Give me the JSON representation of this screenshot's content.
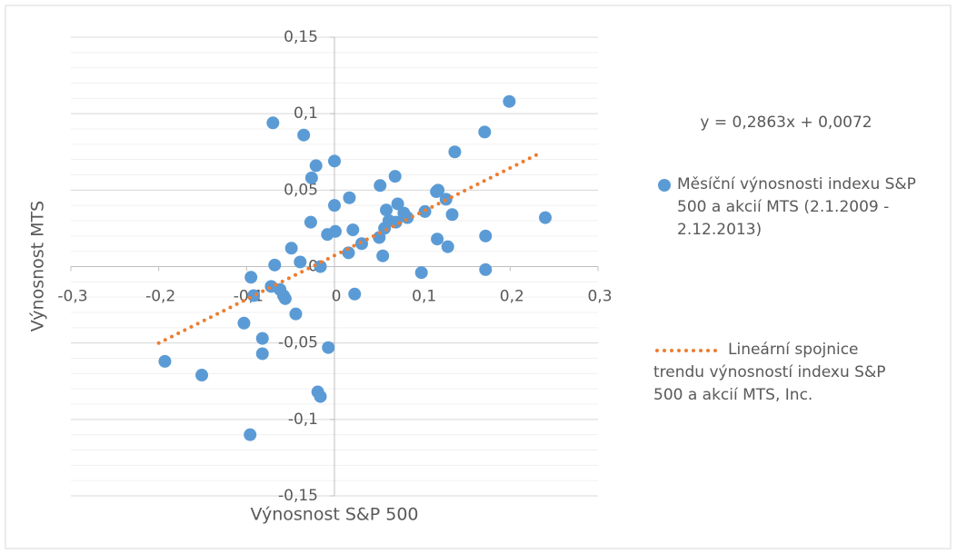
{
  "chart_data": {
    "type": "scatter",
    "xlabel": "Výnosnost S&P 500",
    "ylabel": "Výnosnost MTS",
    "xlim": [
      -0.3,
      0.3
    ],
    "ylim": [
      -0.15,
      0.15
    ],
    "xticks": [
      {
        "value": -0.3,
        "label": "-0,3"
      },
      {
        "value": -0.2,
        "label": "-0,2"
      },
      {
        "value": -0.1,
        "label": "-0,1"
      },
      0,
      {
        "value": 0.1,
        "label": "0,1"
      },
      {
        "value": 0.2,
        "label": "0,2"
      },
      {
        "value": 0.3,
        "label": "0,3"
      }
    ],
    "yticks": [
      {
        "value": -0.15,
        "label": "-0,15"
      },
      {
        "value": -0.1,
        "label": "-0,1"
      },
      {
        "value": -0.05,
        "label": "-0,05"
      },
      0,
      {
        "value": 0.05,
        "label": "0,05"
      },
      {
        "value": 0.1,
        "label": "0,1"
      },
      {
        "value": 0.15,
        "label": "0,15"
      }
    ],
    "grid": true,
    "yminorticks": [
      -0.15,
      -0.14,
      -0.13,
      -0.12,
      -0.11,
      -0.1,
      -0.09,
      -0.08,
      -0.07,
      -0.06,
      -0.05,
      -0.04,
      -0.03,
      -0.02,
      -0.01,
      0,
      0.01,
      0.02,
      0.03,
      0.04,
      0.05,
      0.06,
      0.07,
      0.08,
      0.09,
      0.1,
      0.11,
      0.12,
      0.13,
      0.14,
      0.15
    ],
    "legend": "right",
    "series": [
      {
        "name": "Měsíční výnosnosti indexu S&P 500 a akcií MTS (2.1.2009 - 2.12.2013)",
        "color": "#5b9bd5",
        "x": [
          0.199,
          0.171,
          -0.07,
          -0.035,
          0.137,
          0.0,
          -0.021,
          0.069,
          -0.026,
          0.052,
          0.017,
          0.118,
          0.116,
          0.0,
          0.072,
          0.059,
          0.079,
          0.103,
          0.134,
          0.127,
          0.24,
          0.083,
          0.07,
          0.062,
          -0.027,
          0.001,
          -0.008,
          0.021,
          0.057,
          0.051,
          0.031,
          0.117,
          0.172,
          0.129,
          -0.049,
          0.016,
          0.055,
          -0.039,
          -0.068,
          -0.016,
          0.172,
          0.099,
          -0.095,
          0.023,
          -0.072,
          -0.062,
          -0.058,
          -0.056,
          -0.092,
          -0.044,
          -0.103,
          -0.082,
          -0.007,
          -0.082,
          -0.193,
          -0.151,
          -0.019,
          -0.016,
          -0.096
        ],
        "values": [
          0.108,
          0.088,
          0.094,
          0.086,
          0.075,
          0.069,
          0.066,
          0.059,
          0.058,
          0.053,
          0.045,
          0.05,
          0.049,
          0.04,
          0.041,
          0.037,
          0.035,
          0.036,
          0.034,
          0.044,
          0.032,
          0.032,
          0.029,
          0.03,
          0.029,
          0.023,
          0.021,
          0.024,
          0.025,
          0.019,
          0.015,
          0.018,
          0.02,
          0.013,
          0.012,
          0.009,
          0.007,
          0.003,
          0.001,
          0.0,
          -0.002,
          -0.004,
          -0.007,
          -0.018,
          -0.013,
          -0.015,
          -0.019,
          -0.021,
          -0.019,
          -0.031,
          -0.037,
          -0.047,
          -0.053,
          -0.057,
          -0.062,
          -0.071,
          -0.082,
          -0.085,
          -0.11
        ]
      }
    ],
    "trendline": {
      "name": "Lineární spojnice trendu výnosností indexu S&P 500 a akcií MTS, Inc.",
      "equation": "y = 0,2863x + 0,0072",
      "slope": 0.2863,
      "intercept": 0.0072,
      "x_range": [
        -0.2,
        0.23
      ],
      "color": "#ed7d31"
    }
  }
}
